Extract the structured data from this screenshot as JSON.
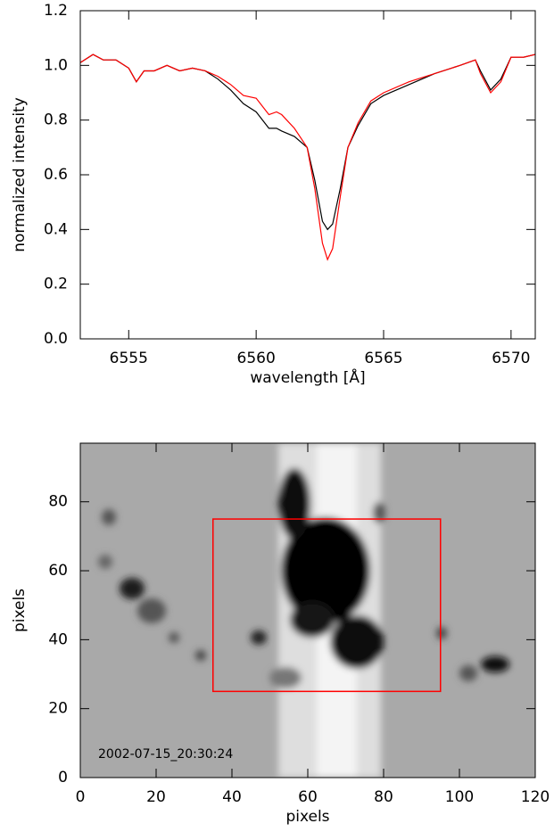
{
  "chart_data": [
    {
      "type": "line",
      "xlabel": "wavelength [Å]",
      "ylabel": "normalized intensity",
      "xlim": [
        6553.1,
        6570.95
      ],
      "ylim": [
        0,
        1.2
      ],
      "xticks": [
        6555,
        6560,
        6565,
        6570
      ],
      "yticks": [
        {
          "value": 0,
          "label": "0.0"
        },
        0.2,
        0.4,
        0.6,
        0.8,
        {
          "value": 1,
          "label": "1.0"
        },
        1.2
      ],
      "x": [
        6553.1,
        6553.6,
        6554.0,
        6554.5,
        6555.0,
        6555.3,
        6555.6,
        6556.0,
        6556.5,
        6557.0,
        6557.5,
        6558.0,
        6558.5,
        6559.0,
        6559.5,
        6560.0,
        6560.5,
        6560.8,
        6561.0,
        6561.5,
        6562.0,
        6562.3,
        6562.6,
        6562.8,
        6563.0,
        6563.3,
        6563.6,
        6564.0,
        6564.5,
        6565.0,
        6566.0,
        6567.0,
        6568.0,
        6568.6,
        6568.8,
        6569.2,
        6569.6,
        6570.0,
        6570.5,
        6570.95
      ],
      "series": [
        {
          "color": "#000000",
          "values": [
            1.01,
            1.04,
            1.02,
            1.02,
            0.99,
            0.94,
            0.98,
            0.98,
            1.0,
            0.98,
            0.99,
            0.98,
            0.95,
            0.91,
            0.86,
            0.83,
            0.77,
            0.77,
            0.76,
            0.74,
            0.7,
            0.58,
            0.43,
            0.4,
            0.42,
            0.55,
            0.7,
            0.78,
            0.86,
            0.89,
            0.93,
            0.97,
            1.0,
            1.02,
            0.98,
            0.91,
            0.95,
            1.03,
            1.03,
            1.04
          ]
        },
        {
          "color": "#ff0000",
          "values": [
            1.01,
            1.04,
            1.02,
            1.02,
            0.99,
            0.94,
            0.98,
            0.98,
            1.0,
            0.98,
            0.99,
            0.98,
            0.96,
            0.93,
            0.89,
            0.88,
            0.82,
            0.83,
            0.82,
            0.77,
            0.7,
            0.55,
            0.35,
            0.29,
            0.33,
            0.52,
            0.7,
            0.79,
            0.87,
            0.9,
            0.94,
            0.97,
            1.0,
            1.02,
            0.97,
            0.9,
            0.94,
            1.03,
            1.03,
            1.04
          ]
        }
      ]
    },
    {
      "type": "image",
      "xlabel": "pixels",
      "ylabel": "pixels",
      "annotation": "2002-07-15_20:30:24",
      "xlim": [
        0,
        120
      ],
      "ylim": [
        0,
        97
      ],
      "xticks": [
        0,
        20,
        40,
        60,
        80,
        100,
        120
      ],
      "yticks": [
        0,
        20,
        40,
        60,
        80
      ],
      "box": {
        "color": "#ff0000",
        "x": [
          35,
          95
        ],
        "y": [
          25,
          75
        ]
      }
    }
  ]
}
